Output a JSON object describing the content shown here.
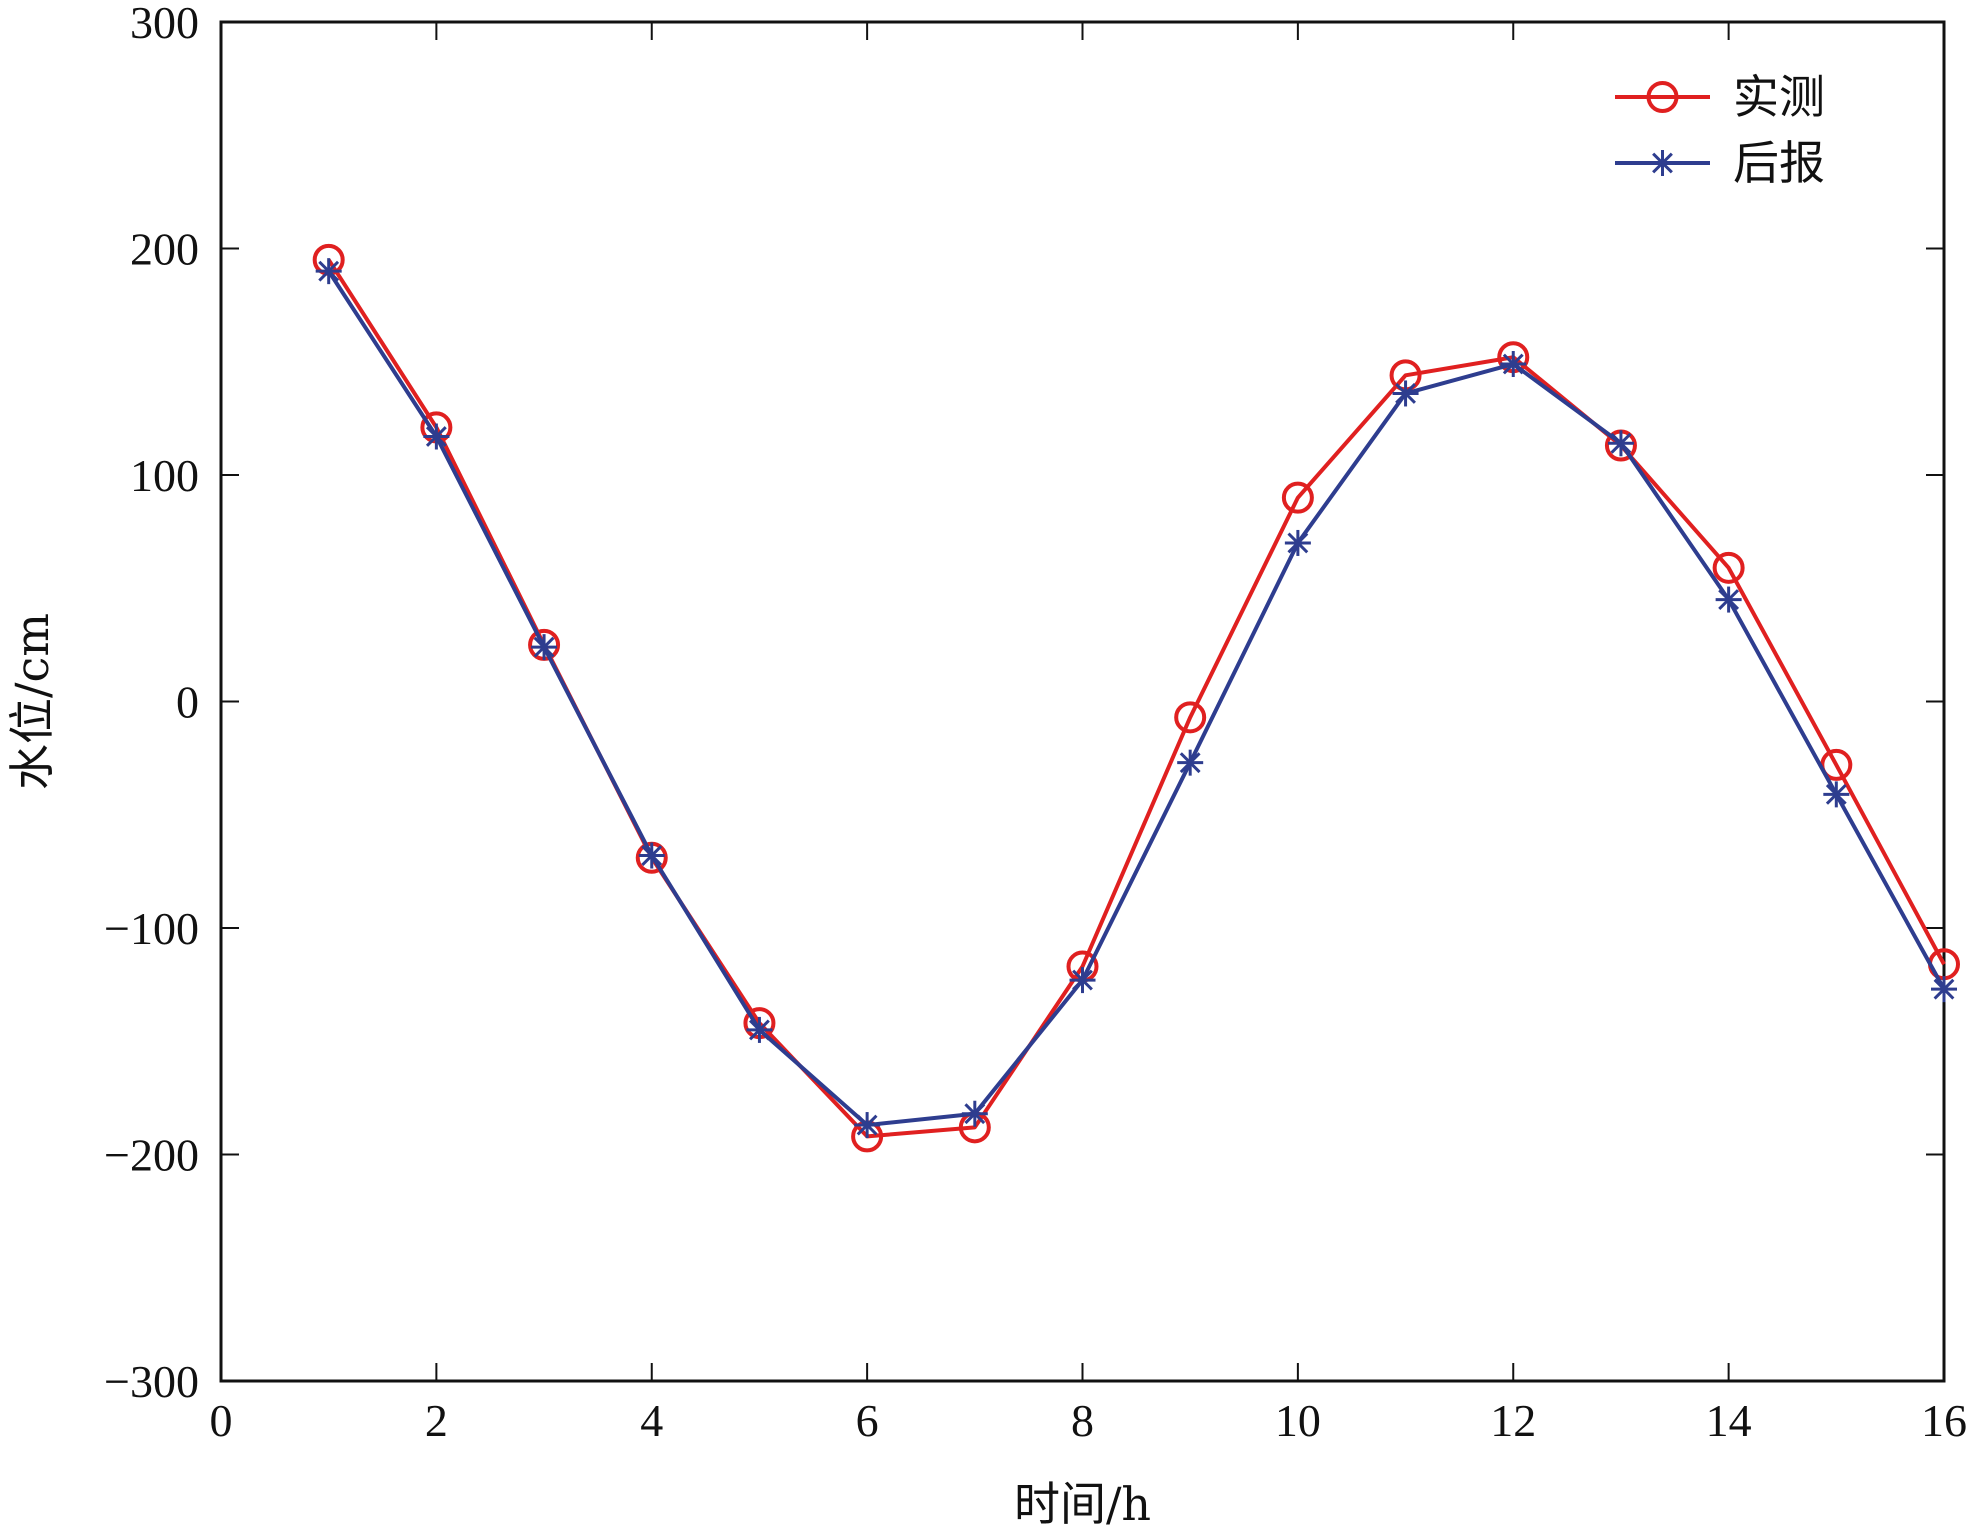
{
  "chart_data": {
    "type": "line",
    "title": "",
    "xlabel": "时间/h",
    "ylabel": "水位/cm",
    "xlim": [
      0,
      16
    ],
    "ylim": [
      -300,
      300
    ],
    "x_ticks": [
      0,
      2,
      4,
      6,
      8,
      10,
      12,
      14,
      16
    ],
    "y_ticks": [
      -300,
      -200,
      -100,
      0,
      100,
      200,
      300
    ],
    "x_tick_labels": [
      "0",
      "2",
      "4",
      "6",
      "8",
      "10",
      "12",
      "14",
      "16"
    ],
    "y_tick_labels": [
      "−300",
      "−200",
      "−100",
      "0",
      "100",
      "200",
      "300"
    ],
    "grid": false,
    "legend_position": "top-right",
    "x": [
      1,
      2,
      3,
      4,
      5,
      6,
      7,
      8,
      9,
      10,
      11,
      12,
      13,
      14,
      15,
      16
    ],
    "series": [
      {
        "name": "实测",
        "color": "#e02020",
        "marker": "circle",
        "values": [
          195,
          121,
          25,
          -69,
          -142,
          -192,
          -188,
          -117,
          -7,
          90,
          144,
          152,
          113,
          59,
          -28,
          -116
        ]
      },
      {
        "name": "后报",
        "color": "#2e3d8f",
        "marker": "asterisk",
        "values": [
          190,
          117,
          24,
          -68,
          -145,
          -187,
          -182,
          -123,
          -27,
          70,
          136,
          149,
          114,
          45,
          -41,
          -127
        ]
      }
    ]
  }
}
